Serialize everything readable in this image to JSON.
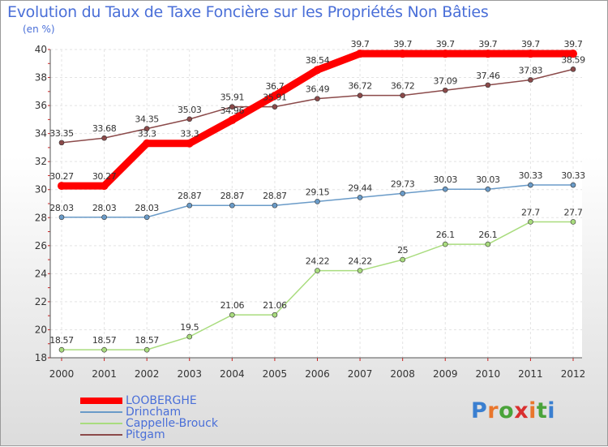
{
  "header": {
    "title": "Evolution du Taux de Taxe Foncière sur les Propriétés Non Bâties",
    "subtitle": "(en %)"
  },
  "logo": {
    "text": "Proxiti",
    "letter_colors": [
      "#3a7fd0",
      "#e9762c",
      "#4aa33a",
      "#d92f2f",
      "#e9762c",
      "#4aa33a",
      "#3a7fd0"
    ]
  },
  "chart_data": {
    "type": "line",
    "x": [
      "2000",
      "2001",
      "2002",
      "2003",
      "2004",
      "2005",
      "2006",
      "2007",
      "2008",
      "2009",
      "2010",
      "2011",
      "2012"
    ],
    "ylim": [
      18,
      40
    ],
    "yticks": [
      18,
      20,
      22,
      24,
      26,
      28,
      30,
      32,
      34,
      36,
      38,
      40
    ],
    "grid": true,
    "legend_position": "bottom-left",
    "series": [
      {
        "name": "LOOBERGHE",
        "color": "#ff0000",
        "values": [
          30.27,
          30.27,
          33.3,
          33.3,
          34.96,
          36.7,
          38.54,
          39.7,
          39.7,
          39.7,
          39.7,
          39.7,
          39.7
        ],
        "labels": [
          "30.27",
          "30.27",
          "33.3",
          "33.3",
          "34.96",
          "36.7",
          "38.54",
          "39.7",
          "39.7",
          "39.7",
          "39.7",
          "39.7",
          "39.7"
        ]
      },
      {
        "name": "Drincham",
        "color": "#6a9bc8",
        "values": [
          28.03,
          28.03,
          28.03,
          28.87,
          28.87,
          28.87,
          29.15,
          29.44,
          29.73,
          30.03,
          30.03,
          30.33,
          30.33
        ],
        "labels": [
          "28.03",
          "28.03",
          "28.03",
          "28.87",
          "28.87",
          "28.87",
          "29.15",
          "29.44",
          "29.73",
          "30.03",
          "30.03",
          "30.33",
          "30.33"
        ]
      },
      {
        "name": "Cappelle-Brouck",
        "color": "#a9dc7e",
        "values": [
          18.57,
          18.57,
          18.57,
          19.5,
          21.06,
          21.06,
          24.22,
          24.22,
          25,
          26.1,
          26.1,
          27.7,
          27.7
        ],
        "labels": [
          "18.57",
          "18.57",
          "18.57",
          "19.5",
          "21.06",
          "21.06",
          "24.22",
          "24.22",
          "25",
          "26.1",
          "26.1",
          "27.7",
          "27.7"
        ]
      },
      {
        "name": "Pitgam",
        "color": "#8b4a4a",
        "values": [
          33.35,
          33.68,
          34.35,
          35.03,
          35.91,
          35.91,
          36.49,
          36.72,
          36.72,
          37.09,
          37.46,
          37.83,
          38.59
        ],
        "labels": [
          "33.35",
          "33.68",
          "34.35",
          "35.03",
          "35.91",
          "35.91",
          "36.49",
          "36.72",
          "36.72",
          "37.09",
          "37.46",
          "37.83",
          "38.59"
        ]
      }
    ]
  }
}
